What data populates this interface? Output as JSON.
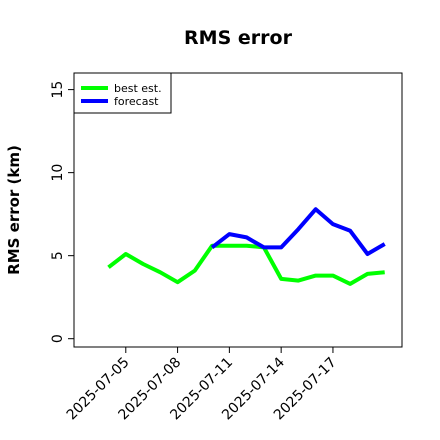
{
  "chart_data": {
    "type": "line",
    "title": "RMS error",
    "ylabel": "RMS error (km)",
    "xlabel": "",
    "xlim": [
      "2025-07-02",
      "2025-07-21"
    ],
    "ylim": [
      -0.5,
      16
    ],
    "yticks": [
      0,
      5,
      10,
      15
    ],
    "xticks": [
      "2025-07-05",
      "2025-07-08",
      "2025-07-11",
      "2025-07-14",
      "2025-07-17"
    ],
    "grid": false,
    "legend_position": "top-left",
    "series": [
      {
        "name": "best est.",
        "color": "#00ff00",
        "x": [
          "2025-07-04",
          "2025-07-05",
          "2025-07-06",
          "2025-07-07",
          "2025-07-08",
          "2025-07-09",
          "2025-07-10",
          "2025-07-11",
          "2025-07-12",
          "2025-07-13",
          "2025-07-14",
          "2025-07-15",
          "2025-07-16",
          "2025-07-17",
          "2025-07-18",
          "2025-07-19",
          "2025-07-20"
        ],
        "values": [
          4.3,
          5.1,
          4.5,
          4.0,
          3.4,
          4.1,
          5.6,
          5.6,
          5.6,
          5.5,
          3.6,
          3.5,
          3.8,
          3.8,
          3.3,
          3.9,
          4.0
        ]
      },
      {
        "name": "forecast",
        "color": "#0000ff",
        "x": [
          "2025-07-10",
          "2025-07-11",
          "2025-07-12",
          "2025-07-13",
          "2025-07-14",
          "2025-07-15",
          "2025-07-16",
          "2025-07-17",
          "2025-07-18",
          "2025-07-19",
          "2025-07-20"
        ],
        "values": [
          5.5,
          6.3,
          6.1,
          5.5,
          5.5,
          6.6,
          7.8,
          6.9,
          6.5,
          5.1,
          5.7
        ]
      }
    ]
  }
}
